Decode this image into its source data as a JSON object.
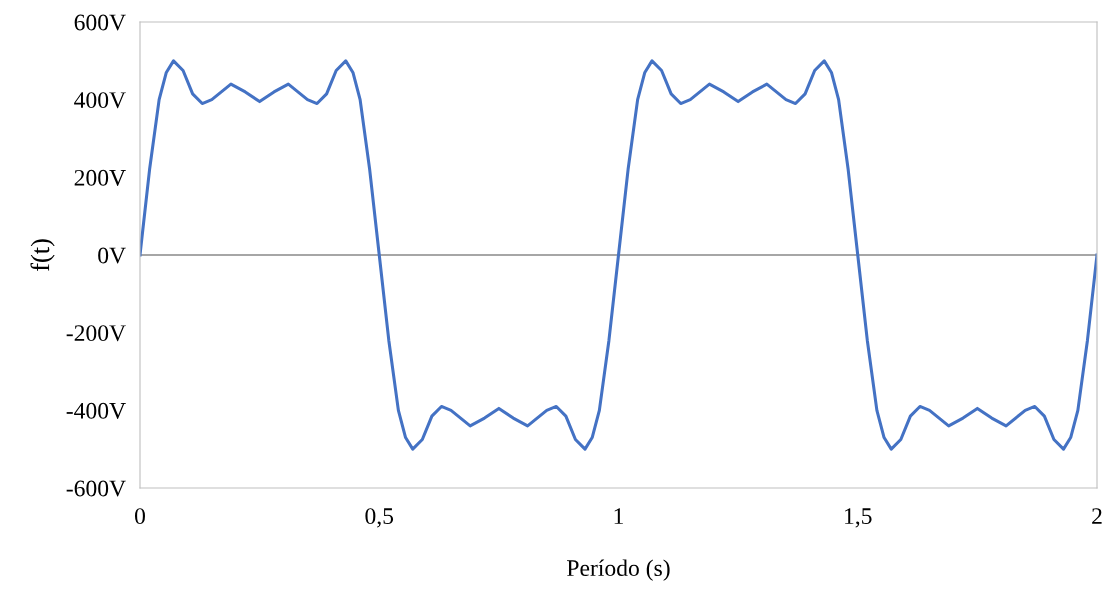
{
  "chart_data": {
    "type": "line",
    "xlabel": "Período (s)",
    "ylabel": "f(t)",
    "xlim": [
      0,
      2
    ],
    "xticks": [
      0,
      {
        "value": 0.5,
        "label": "0,5"
      },
      1,
      {
        "value": 1.5,
        "label": "1,5"
      },
      2
    ],
    "ylim": [
      -600,
      600
    ],
    "yticks": [
      {
        "value": -600,
        "label": "-600V"
      },
      {
        "value": -400,
        "label": "-400V"
      },
      {
        "value": -200,
        "label": "-200V"
      },
      {
        "value": 0,
        "label": "0V"
      },
      {
        "value": 200,
        "label": "200V"
      },
      {
        "value": 400,
        "label": "400V"
      },
      {
        "value": 600,
        "label": "600V"
      }
    ],
    "grid": false,
    "legend": false,
    "marker": "none",
    "line_style": "solid",
    "ref_lines": [
      {
        "axis": "y",
        "value": 0,
        "color": "#a6a6a6"
      }
    ],
    "series": [
      {
        "color": "#4472c4",
        "x": [
          0,
          0.02,
          0.04,
          0.055,
          0.07,
          0.09,
          0.11,
          0.13,
          0.15,
          0.19,
          0.22,
          0.25,
          0.28,
          0.31,
          0.35,
          0.37,
          0.39,
          0.41,
          0.43,
          0.445,
          0.46,
          0.48,
          0.5,
          0.52,
          0.54,
          0.555,
          0.57,
          0.59,
          0.61,
          0.63,
          0.65,
          0.69,
          0.72,
          0.75,
          0.78,
          0.81,
          0.85,
          0.87,
          0.89,
          0.91,
          0.93,
          0.945,
          0.96,
          0.98,
          1.0,
          1.02,
          1.04,
          1.055,
          1.07,
          1.09,
          1.11,
          1.13,
          1.15,
          1.19,
          1.22,
          1.25,
          1.28,
          1.31,
          1.35,
          1.37,
          1.39,
          1.41,
          1.43,
          1.445,
          1.46,
          1.48,
          1.5,
          1.52,
          1.54,
          1.555,
          1.57,
          1.59,
          1.61,
          1.63,
          1.65,
          1.69,
          1.72,
          1.75,
          1.78,
          1.81,
          1.85,
          1.87,
          1.89,
          1.91,
          1.93,
          1.945,
          1.96,
          1.98,
          2.0
        ],
        "values": [
          0,
          220,
          400,
          470,
          500,
          475,
          415,
          390,
          400,
          440,
          420,
          395,
          420,
          440,
          400,
          390,
          415,
          475,
          500,
          470,
          400,
          220,
          0,
          -220,
          -400,
          -470,
          -500,
          -475,
          -415,
          -390,
          -400,
          -440,
          -420,
          -395,
          -420,
          -440,
          -400,
          -390,
          -415,
          -475,
          -500,
          -470,
          -400,
          -220,
          0,
          220,
          400,
          470,
          500,
          475,
          415,
          390,
          400,
          440,
          420,
          395,
          420,
          440,
          400,
          390,
          415,
          475,
          500,
          470,
          400,
          220,
          0,
          -220,
          -400,
          -470,
          -500,
          -475,
          -415,
          -390,
          -400,
          -440,
          -420,
          -395,
          -420,
          -440,
          -400,
          -390,
          -415,
          -475,
          -500,
          -470,
          -400,
          -220,
          0
        ]
      }
    ]
  }
}
